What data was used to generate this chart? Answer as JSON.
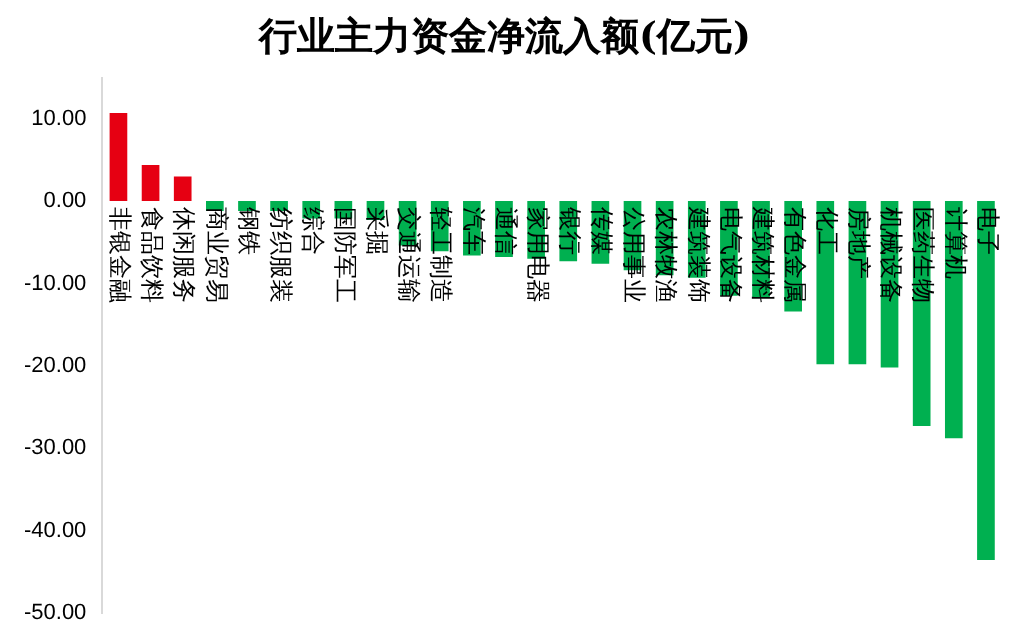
{
  "chart_data": {
    "type": "bar",
    "title": "行业主力资金净流入额(亿元)",
    "categories": [
      "非银金融",
      "食品饮料",
      "休闲服务",
      "商业贸易",
      "钢铁",
      "纺织服装",
      "综合",
      "国防军工",
      "采掘",
      "交通运输",
      "轻工制造",
      "汽车",
      "通信",
      "家用电器",
      "银行",
      "传媒",
      "公用事业",
      "农林牧渔",
      "建筑装饰",
      "电气设备",
      "建筑材料",
      "有色金属",
      "化工",
      "房地产",
      "机械设备",
      "医药生物",
      "计算机",
      "电子"
    ],
    "values": [
      10.7,
      4.4,
      3.0,
      -1.2,
      -1.2,
      -1.2,
      -2.1,
      -2.1,
      -2.3,
      -5.4,
      -6.1,
      -6.6,
      -6.8,
      -7.0,
      -7.3,
      -7.6,
      -8.4,
      -9.0,
      -9.3,
      -11.5,
      -11.7,
      -13.4,
      -19.8,
      -19.8,
      -20.2,
      -27.3,
      -28.8,
      -43.6
    ],
    "colors": [
      "#e60012",
      "#e60012",
      "#e60012",
      "#00b050",
      "#00b050",
      "#00b050",
      "#00b050",
      "#00b050",
      "#00b050",
      "#00b050",
      "#00b050",
      "#00b050",
      "#00b050",
      "#00b050",
      "#00b050",
      "#00b050",
      "#00b050",
      "#00b050",
      "#00b050",
      "#00b050",
      "#00b050",
      "#00b050",
      "#00b050",
      "#00b050",
      "#00b050",
      "#00b050",
      "#00b050",
      "#00b050"
    ],
    "ylim": [
      -50,
      15
    ],
    "yticks": [
      {
        "value": -50,
        "label": "-50.00"
      },
      {
        "value": -40,
        "label": "-40.00"
      },
      {
        "value": -30,
        "label": "-30.00"
      },
      {
        "value": -20,
        "label": "-20.00"
      },
      {
        "value": -10,
        "label": "-10.00"
      },
      {
        "value": 0,
        "label": "0.00"
      },
      {
        "value": 10,
        "label": "10.00"
      }
    ],
    "grid": false,
    "legend": false
  }
}
